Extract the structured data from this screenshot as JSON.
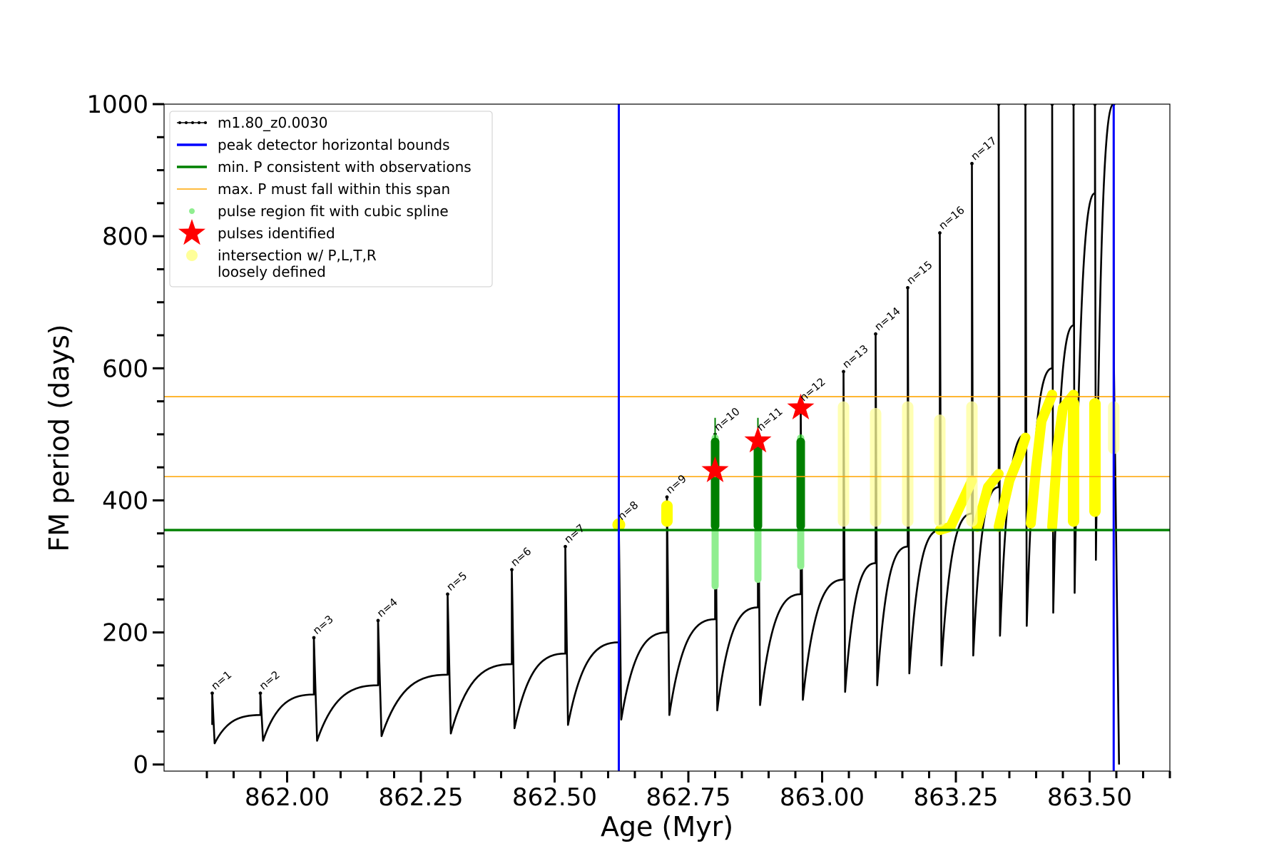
{
  "chart_data": {
    "type": "line",
    "xlabel": "Age (Myr)",
    "ylabel": "FM period (days)",
    "xlim": [
      861.77,
      863.65
    ],
    "ylim": [
      -10,
      1000
    ],
    "x_ticks": [
      862.0,
      862.25,
      862.5,
      862.75,
      863.0,
      863.25,
      863.5
    ],
    "x_tick_labels": [
      "862.00",
      "862.25",
      "862.50",
      "862.75",
      "863.00",
      "863.25",
      "863.50"
    ],
    "y_ticks": [
      0,
      200,
      400,
      600,
      800,
      1000
    ],
    "y_tick_labels": [
      "0",
      "200",
      "400",
      "600",
      "800",
      "1000"
    ],
    "grid": false,
    "legend_position": "top-left",
    "legend": [
      {
        "label": "m1.80_z0.0030",
        "kind": "line-marker",
        "color": "#000000"
      },
      {
        "label": "peak detector horizontal bounds",
        "kind": "line",
        "color": "#0000ff"
      },
      {
        "label": "min. P consistent with observations",
        "kind": "line",
        "color": "#008000"
      },
      {
        "label": "max. P must fall within this span",
        "kind": "line",
        "color": "#ffa500"
      },
      {
        "label": "pulse region fit with cubic spline",
        "kind": "dot",
        "color": "#90ee90"
      },
      {
        "label": "pulses identified",
        "kind": "star",
        "color": "#ff0000"
      },
      {
        "label": "intersection w/ P,L,T,R",
        "label2": "loosely defined",
        "kind": "circle",
        "color": "#ffff99"
      }
    ],
    "vertical_lines": {
      "color": "#0000ff",
      "x": [
        862.62,
        863.545
      ]
    },
    "horizontal_lines": [
      {
        "name": "min. P consistent with observations",
        "y": 355,
        "color": "#008000"
      },
      {
        "name": "max. P must fall within this span",
        "y": 557,
        "color": "#ffa500"
      },
      {
        "name": "max. P must fall within this span",
        "y": 436,
        "color": "#ffa500"
      }
    ],
    "pulses": [
      {
        "label": "n=1",
        "x": 861.86,
        "peak": 108,
        "dip": 32,
        "pre": null
      },
      {
        "label": "n=2",
        "x": 861.95,
        "peak": 108,
        "dip": 36,
        "pre": 75
      },
      {
        "label": "n=3",
        "x": 862.05,
        "peak": 192,
        "dip": 36,
        "pre": 106
      },
      {
        "label": "n=4",
        "x": 862.17,
        "peak": 218,
        "dip": 43,
        "pre": 120
      },
      {
        "label": "n=5",
        "x": 862.3,
        "peak": 258,
        "dip": 47,
        "pre": 136
      },
      {
        "label": "n=6",
        "x": 862.42,
        "peak": 295,
        "dip": 55,
        "pre": 152
      },
      {
        "label": "n=7",
        "x": 862.52,
        "peak": 330,
        "dip": 60,
        "pre": 168
      },
      {
        "label": "n=8",
        "x": 862.62,
        "peak": 365,
        "dip": 68,
        "pre": 185
      },
      {
        "label": "n=9",
        "x": 862.71,
        "peak": 405,
        "dip": 75,
        "pre": 200
      },
      {
        "label": "n=10",
        "x": 862.8,
        "peak": 500,
        "dip": 82,
        "pre": 220
      },
      {
        "label": "n=11",
        "x": 862.88,
        "peak": 500,
        "dip": 90,
        "pre": 238
      },
      {
        "label": "n=12",
        "x": 862.96,
        "peak": 545,
        "dip": 98,
        "pre": 258
      },
      {
        "label": "n=13",
        "x": 863.04,
        "peak": 595,
        "dip": 110,
        "pre": 280
      },
      {
        "label": "n=14",
        "x": 863.1,
        "peak": 652,
        "dip": 120,
        "pre": 305
      },
      {
        "label": "n=15",
        "x": 863.16,
        "peak": 722,
        "dip": 138,
        "pre": 330
      },
      {
        "label": "n=16",
        "x": 863.22,
        "peak": 805,
        "dip": 150,
        "pre": 355
      },
      {
        "label": "n=17",
        "x": 863.28,
        "peak": 910,
        "dip": 165,
        "pre": 380
      },
      {
        "label": "",
        "x": 863.33,
        "peak": 1000,
        "dip": 195,
        "pre": 420
      },
      {
        "label": "",
        "x": 863.38,
        "peak": 1000,
        "dip": 210,
        "pre": 500
      },
      {
        "label": "",
        "x": 863.43,
        "peak": 1000,
        "dip": 230,
        "pre": 600
      },
      {
        "label": "",
        "x": 863.47,
        "peak": 1000,
        "dip": 260,
        "pre": 665
      },
      {
        "label": "",
        "x": 863.51,
        "peak": 1000,
        "dip": 310,
        "pre": 865
      },
      {
        "label": "",
        "x": 863.545,
        "peak": 1000,
        "dip": 600,
        "pre": 1000
      }
    ],
    "final_drop": {
      "x": 863.555,
      "y": 0
    },
    "stars": [
      {
        "x": 862.8,
        "y": 445
      },
      {
        "x": 862.88,
        "y": 490
      },
      {
        "x": 862.96,
        "y": 540
      }
    ],
    "spline_regions": [
      {
        "x": 862.8,
        "y0": 265,
        "y1": 500
      },
      {
        "x": 862.88,
        "y0": 275,
        "y1": 500
      },
      {
        "x": 862.96,
        "y0": 295,
        "y1": 500
      }
    ],
    "green_bars": [
      {
        "x": 862.8,
        "y0": 355,
        "y1": 525
      },
      {
        "x": 862.88,
        "y0": 355,
        "y1": 525
      },
      {
        "x": 862.96,
        "y0": 355,
        "y1": 500
      }
    ],
    "yellow_blobs": [
      {
        "x": 862.62,
        "y": 363,
        "kind": "dot"
      },
      {
        "x": 862.71,
        "y0": 360,
        "y1": 400,
        "kind": "bar"
      },
      {
        "x": 863.04,
        "y0": 360,
        "y1": 550,
        "kind": "pale"
      },
      {
        "x": 863.1,
        "y0": 360,
        "y1": 540,
        "kind": "pale"
      },
      {
        "x": 863.16,
        "y0": 360,
        "y1": 550,
        "kind": "pale"
      },
      {
        "x": 863.22,
        "y0": 360,
        "y1": 530,
        "kind": "pale"
      },
      {
        "x": 863.28,
        "y0": 360,
        "y1": 550,
        "kind": "pale"
      },
      {
        "x": 863.47,
        "y0": 360,
        "y1": 555,
        "kind": "bar"
      },
      {
        "x": 863.51,
        "y0": 375,
        "y1": 555,
        "kind": "bar"
      },
      {
        "x": 863.545,
        "y0": 470,
        "y1": 550,
        "kind": "pale"
      }
    ],
    "yellow_arcs": [
      [
        [
          863.22,
          355
        ],
        [
          863.24,
          360
        ],
        [
          863.26,
          395
        ],
        [
          863.28,
          430
        ]
      ],
      [
        [
          863.29,
          360
        ],
        [
          863.3,
          390
        ],
        [
          863.31,
          420
        ],
        [
          863.33,
          440
        ]
      ],
      [
        [
          863.33,
          360
        ],
        [
          863.35,
          430
        ],
        [
          863.37,
          470
        ],
        [
          863.38,
          495
        ]
      ],
      [
        [
          863.39,
          365
        ],
        [
          863.4,
          450
        ],
        [
          863.41,
          520
        ],
        [
          863.43,
          560
        ]
      ],
      [
        [
          863.43,
          360
        ],
        [
          863.44,
          480
        ],
        [
          863.45,
          540
        ],
        [
          863.47,
          560
        ]
      ]
    ]
  }
}
